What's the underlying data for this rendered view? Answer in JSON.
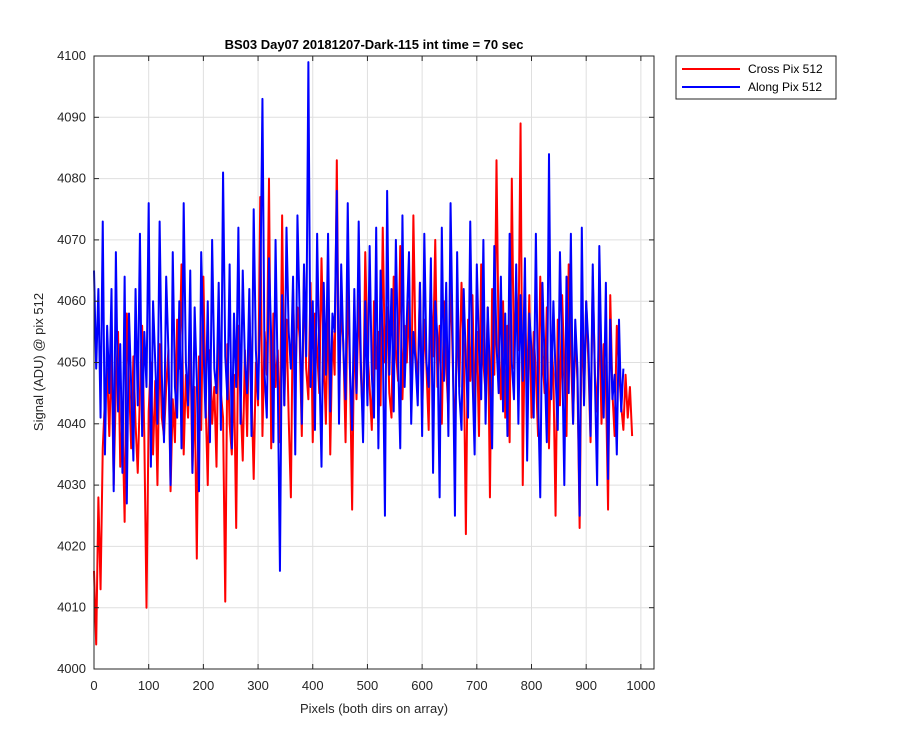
{
  "chart_data": {
    "type": "line",
    "title": "BS03 Day07 20181207-Dark-115 int time = 70 sec",
    "xlabel": "Pixels (both dirs on array)",
    "ylabel": "Signal (ADU) @ pix 512",
    "xlim": [
      0,
      1024
    ],
    "ylim": [
      4000,
      4100
    ],
    "xticks": [
      0,
      100,
      200,
      300,
      400,
      500,
      600,
      700,
      800,
      900,
      1000
    ],
    "yticks": [
      4000,
      4010,
      4020,
      4030,
      4040,
      4050,
      4060,
      4070,
      4080,
      4090,
      4100
    ],
    "grid": true,
    "legend_position": "outside-top-right",
    "series": [
      {
        "name": "Cross Pix 512",
        "color": "#ff0000",
        "x_start": 0,
        "x_step": 4,
        "values": [
          4016,
          4004,
          4028,
          4013,
          4036,
          4044,
          4049,
          4038,
          4052,
          4030,
          4046,
          4055,
          4033,
          4041,
          4024,
          4058,
          4047,
          4036,
          4051,
          4040,
          4032,
          4045,
          4056,
          4038,
          4010,
          4042,
          4050,
          4035,
          4047,
          4030,
          4053,
          4041,
          4038,
          4046,
          4052,
          4029,
          4044,
          4037,
          4057,
          4049,
          4066,
          4035,
          4048,
          4041,
          4054,
          4032,
          4046,
          4018,
          4051,
          4039,
          4064,
          4044,
          4030,
          4052,
          4040,
          4046,
          4033,
          4058,
          4045,
          4041,
          4011,
          4053,
          4040,
          4035,
          4048,
          4023,
          4056,
          4044,
          4034,
          4052,
          4038,
          4059,
          4046,
          4031,
          4050,
          4043,
          4077,
          4038,
          4055,
          4048,
          4080,
          4036,
          4058,
          4046,
          4052,
          4037,
          4074,
          4043,
          4057,
          4041,
          4028,
          4062,
          4046,
          4059,
          4054,
          4038,
          4065,
          4049,
          4044,
          4063,
          4037,
          4058,
          4052,
          4045,
          4067,
          4051,
          4040,
          4061,
          4035,
          4055,
          4048,
          4083,
          4044,
          4059,
          4053,
          4037,
          4063,
          4049,
          4026,
          4057,
          4044,
          4061,
          4048,
          4040,
          4068,
          4052,
          4046,
          4039,
          4060,
          4049,
          4055,
          4043,
          4072,
          4050,
          4059,
          4045,
          4041,
          4064,
          4052,
          4047,
          4069,
          4044,
          4056,
          4050,
          4060,
          4042,
          4074,
          4052,
          4046,
          4063,
          4041,
          4057,
          4049,
          4039,
          4062,
          4051,
          4070,
          4046,
          4056,
          4040,
          4060,
          4049,
          4042,
          4065,
          4050,
          4036,
          4058,
          4046,
          4063,
          4052,
          4022,
          4057,
          4047,
          4061,
          4043,
          4055,
          4038,
          4066,
          4050,
          4045,
          4059,
          4028,
          4062,
          4048,
          4083,
          4052,
          4044,
          4060,
          4041,
          4056,
          4037,
          4080,
          4049,
          4063,
          4052,
          4089,
          4030,
          4058,
          4046,
          4061,
          4041,
          4055,
          4048,
          4038,
          4064,
          4051,
          4045,
          4059,
          4036,
          4054,
          4048,
          4025,
          4057,
          4043,
          4061,
          4049,
          4038,
          4066,
          4052,
          4040,
          4055,
          4047,
          4023,
          4059,
          4044,
          4060,
          4050,
          4037,
          4064,
          4048,
          4042,
          4058,
          4040,
          4053,
          4047,
          4026,
          4061,
          4045,
          4038,
          4056,
          4049,
          4043,
          4039,
          4048,
          4041,
          4046,
          4038
        ]
      },
      {
        "name": "Along Pix 512",
        "color": "#0000ff",
        "x_start": 0,
        "x_step": 4,
        "values": [
          4065,
          4049,
          4062,
          4041,
          4073,
          4035,
          4056,
          4045,
          4062,
          4029,
          4068,
          4042,
          4053,
          4032,
          4064,
          4027,
          4058,
          4046,
          4034,
          4062,
          4043,
          4071,
          4038,
          4055,
          4046,
          4076,
          4033,
          4060,
          4050,
          4040,
          4073,
          4048,
          4037,
          4064,
          4052,
          4030,
          4068,
          4046,
          4041,
          4060,
          4036,
          4076,
          4050,
          4043,
          4065,
          4032,
          4059,
          4047,
          4029,
          4068,
          4053,
          4041,
          4060,
          4037,
          4070,
          4049,
          4045,
          4063,
          4039,
          4081,
          4051,
          4044,
          4066,
          4036,
          4058,
          4046,
          4072,
          4040,
          4065,
          4050,
          4045,
          4062,
          4038,
          4075,
          4052,
          4044,
          4060,
          4093,
          4048,
          4041,
          4067,
          4054,
          4037,
          4070,
          4047,
          4016,
          4061,
          4043,
          4072,
          4055,
          4049,
          4064,
          4035,
          4074,
          4058,
          4040,
          4066,
          4051,
          4099,
          4046,
          4060,
          4039,
          4071,
          4050,
          4033,
          4063,
          4048,
          4071,
          4042,
          4058,
          4055,
          4078,
          4040,
          4066,
          4052,
          4044,
          4076,
          4049,
          4039,
          4062,
          4045,
          4073,
          4050,
          4037,
          4060,
          4043,
          4069,
          4048,
          4041,
          4072,
          4036,
          4065,
          4054,
          4025,
          4078,
          4048,
          4062,
          4042,
          4070,
          4051,
          4036,
          4074,
          4046,
          4057,
          4068,
          4040,
          4055,
          4050,
          4043,
          4063,
          4038,
          4071,
          4050,
          4046,
          4067,
          4032,
          4060,
          4054,
          4028,
          4072,
          4047,
          4063,
          4038,
          4076,
          4053,
          4025,
          4068,
          4045,
          4039,
          4062,
          4050,
          4041,
          4073,
          4048,
          4035,
          4066,
          4052,
          4044,
          4070,
          4040,
          4059,
          4048,
          4036,
          4069,
          4053,
          4045,
          4064,
          4042,
          4058,
          4038,
          4071,
          4050,
          4044,
          4066,
          4040,
          4061,
          4047,
          4067,
          4034,
          4058,
          4052,
          4041,
          4071,
          4045,
          4028,
          4063,
          4050,
          4037,
          4084,
          4044,
          4060,
          4048,
          4039,
          4068,
          4052,
          4030,
          4064,
          4045,
          4071,
          4040,
          4057,
          4049,
          4025,
          4072,
          4043,
          4060,
          4053,
          4038,
          4066,
          4047,
          4030,
          4069,
          4050,
          4041,
          4063,
          4031,
          4057,
          4044,
          4048,
          4035,
          4057,
          4042,
          4049
        ]
      }
    ]
  }
}
